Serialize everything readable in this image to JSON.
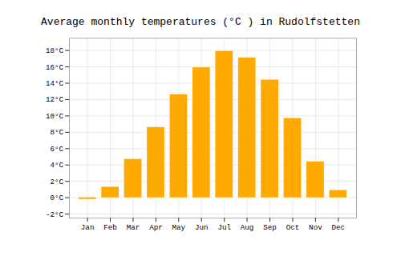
{
  "chart_data": {
    "type": "bar",
    "title": "Average monthly temperatures (°C ) in Rudolfstetten",
    "categories": [
      "Jan",
      "Feb",
      "Mar",
      "Apr",
      "May",
      "Jun",
      "Jul",
      "Aug",
      "Sep",
      "Oct",
      "Nov",
      "Dec"
    ],
    "values": [
      -0.2,
      1.3,
      4.7,
      8.6,
      12.6,
      15.9,
      17.9,
      17.1,
      14.4,
      9.7,
      4.4,
      0.9
    ],
    "color": "#FFAA00",
    "ylim": [
      -2.5,
      19.5
    ],
    "yticks": [
      {
        "value": -2,
        "label": "-2°C"
      },
      {
        "value": 0,
        "label": "0°C"
      },
      {
        "value": 2,
        "label": "2°C"
      },
      {
        "value": 4,
        "label": "4°C"
      },
      {
        "value": 6,
        "label": "6°C"
      },
      {
        "value": 8,
        "label": "8°C"
      },
      {
        "value": 10,
        "label": "10°C"
      },
      {
        "value": 12,
        "label": "12°C"
      },
      {
        "value": 14,
        "label": "14°C"
      },
      {
        "value": 16,
        "label": "16°C"
      },
      {
        "value": 18,
        "label": "18°C"
      }
    ],
    "grid": true
  }
}
